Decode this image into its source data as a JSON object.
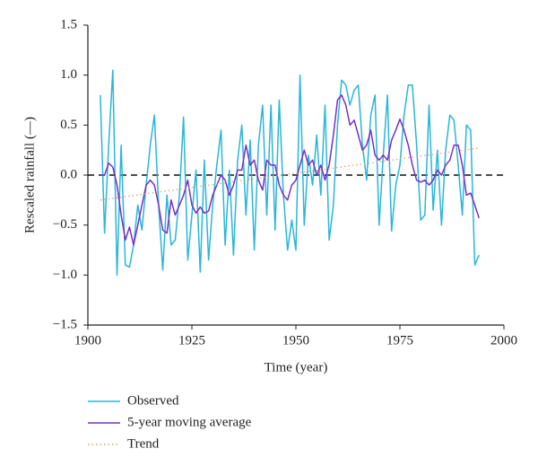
{
  "chart_data": {
    "type": "line",
    "xlabel": "Time (year)",
    "ylabel": "Rescaled rainfall (—)",
    "x": [
      1903,
      1904,
      1905,
      1906,
      1907,
      1908,
      1909,
      1910,
      1911,
      1912,
      1913,
      1914,
      1915,
      1916,
      1917,
      1918,
      1919,
      1920,
      1921,
      1922,
      1923,
      1924,
      1925,
      1926,
      1927,
      1928,
      1929,
      1930,
      1931,
      1932,
      1933,
      1934,
      1935,
      1936,
      1937,
      1938,
      1939,
      1940,
      1941,
      1942,
      1943,
      1944,
      1945,
      1946,
      1947,
      1948,
      1949,
      1950,
      1951,
      1952,
      1953,
      1954,
      1955,
      1956,
      1957,
      1958,
      1959,
      1960,
      1961,
      1962,
      1963,
      1964,
      1965,
      1966,
      1967,
      1968,
      1969,
      1970,
      1971,
      1972,
      1973,
      1974,
      1975,
      1976,
      1977,
      1978,
      1979,
      1980,
      1981,
      1982,
      1983,
      1984,
      1985,
      1986,
      1987,
      1988,
      1989,
      1990,
      1991,
      1992,
      1993,
      1994
    ],
    "series": [
      {
        "name": "Observed",
        "color": "#29b6d8",
        "dash": "none",
        "values": [
          0.8,
          -0.58,
          0.3,
          1.05,
          -1.0,
          0.3,
          -0.9,
          -0.92,
          -0.7,
          -0.3,
          -0.55,
          -0.1,
          0.3,
          0.6,
          -0.3,
          -0.95,
          -0.2,
          -0.7,
          -0.65,
          -0.2,
          0.58,
          -0.85,
          -0.4,
          0.05,
          -0.97,
          0.15,
          -0.85,
          -0.3,
          0.1,
          0.45,
          -0.7,
          0.05,
          -0.8,
          0.15,
          0.5,
          -0.4,
          0.35,
          -0.75,
          0.3,
          0.7,
          -0.4,
          0.7,
          -0.55,
          0.75,
          -0.2,
          -0.75,
          -0.45,
          -0.75,
          1.0,
          -0.5,
          0.2,
          -0.1,
          0.4,
          -0.2,
          0.7,
          -0.65,
          -0.3,
          0.5,
          0.95,
          0.9,
          0.7,
          0.85,
          0.9,
          0.3,
          -0.05,
          0.6,
          0.8,
          -0.5,
          0.2,
          0.8,
          -0.56,
          -0.1,
          0.1,
          0.6,
          0.9,
          0.9,
          0.3,
          -0.45,
          -0.4,
          0.7,
          -0.35,
          0.25,
          -0.5,
          0.25,
          0.6,
          0.55,
          0.1,
          -0.4,
          0.5,
          0.45,
          -0.9,
          -0.8
        ]
      },
      {
        "name": "5-year moving average",
        "color": "#7a2fc7",
        "dash": "none",
        "values": [
          0.0,
          0.0,
          0.12,
          0.08,
          -0.1,
          -0.4,
          -0.65,
          -0.52,
          -0.7,
          -0.5,
          -0.3,
          -0.1,
          -0.05,
          -0.1,
          -0.3,
          -0.55,
          -0.58,
          -0.25,
          -0.4,
          -0.3,
          -0.2,
          -0.05,
          -0.3,
          -0.38,
          -0.32,
          -0.38,
          -0.36,
          -0.2,
          -0.1,
          0.0,
          -0.05,
          -0.2,
          -0.1,
          0.05,
          0.05,
          0.3,
          0.1,
          0.15,
          -0.05,
          -0.15,
          0.15,
          0.1,
          0.1,
          -0.1,
          -0.2,
          -0.25,
          -0.1,
          -0.05,
          0.1,
          0.25,
          0.1,
          0.15,
          0.0,
          0.1,
          -0.05,
          0.1,
          0.4,
          0.75,
          0.8,
          0.7,
          0.5,
          0.55,
          0.4,
          0.25,
          0.3,
          0.45,
          0.2,
          0.15,
          0.2,
          0.15,
          0.35,
          0.45,
          0.56,
          0.45,
          0.3,
          0.1,
          -0.05,
          -0.07,
          -0.05,
          -0.1,
          -0.05,
          0.05,
          0.0,
          0.1,
          0.15,
          0.3,
          0.3,
          0.1,
          -0.2,
          -0.18,
          -0.3,
          -0.43
        ]
      },
      {
        "name": "Trend",
        "color": "#e0a070",
        "dash": "1.5 3",
        "x": [
          1903,
          1994
        ],
        "values": [
          -0.25,
          0.27
        ]
      }
    ],
    "hline": 0,
    "xlim": [
      1900,
      2000
    ],
    "xticks": [
      1900,
      1925,
      1950,
      1975,
      2000
    ],
    "ylim": [
      -1.5,
      1.5
    ],
    "yticks": [
      {
        "value": -1.5,
        "label": "−1.5"
      },
      {
        "value": -1,
        "label": "−1.0"
      },
      {
        "value": -0.5,
        "label": "−0.5"
      },
      {
        "value": 0,
        "label": "0.0"
      },
      0.5,
      {
        "value": 1,
        "label": "1.0"
      },
      1.5
    ]
  }
}
